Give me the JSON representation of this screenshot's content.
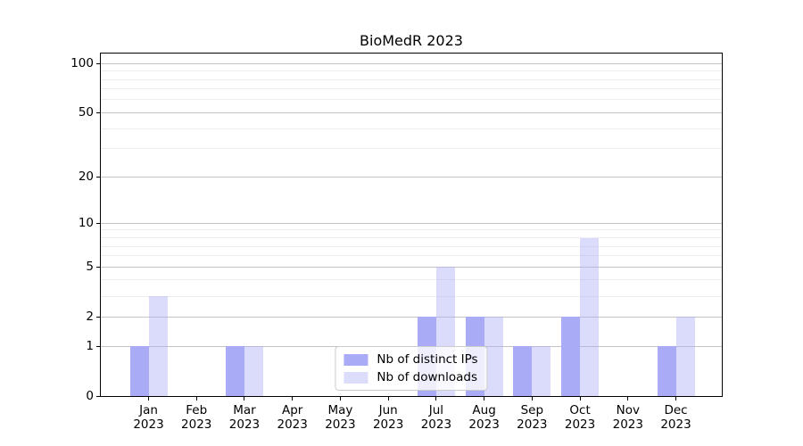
{
  "figure": {
    "background": "#ffffff"
  },
  "chart_data": {
    "type": "bar",
    "title": "BioMedR 2023",
    "x_categories": [
      {
        "month": "Jan",
        "year": "2023"
      },
      {
        "month": "Feb",
        "year": "2023"
      },
      {
        "month": "Mar",
        "year": "2023"
      },
      {
        "month": "Apr",
        "year": "2023"
      },
      {
        "month": "May",
        "year": "2023"
      },
      {
        "month": "Jun",
        "year": "2023"
      },
      {
        "month": "Jul",
        "year": "2023"
      },
      {
        "month": "Aug",
        "year": "2023"
      },
      {
        "month": "Sep",
        "year": "2023"
      },
      {
        "month": "Oct",
        "year": "2023"
      },
      {
        "month": "Nov",
        "year": "2023"
      },
      {
        "month": "Dec",
        "year": "2023"
      }
    ],
    "series": [
      {
        "name": "Nb of distinct IPs",
        "color": "#a9abf6",
        "alpha": 1,
        "legend_color": "#a9abf6",
        "values": [
          1,
          0,
          1,
          0,
          0,
          0,
          2,
          2,
          1,
          2,
          0,
          1
        ]
      },
      {
        "name": "Nb of downloads",
        "color": "#a9abf6",
        "alpha": 0.42,
        "legend_color": "#dcddfb",
        "values": [
          3,
          0,
          1,
          0,
          0,
          0,
          5,
          2,
          1,
          8,
          0,
          2
        ]
      }
    ],
    "y_scale": "log1p",
    "y_ticks": [
      0,
      1,
      2,
      5,
      10,
      20,
      50,
      100
    ],
    "y_minor_gridlines": [
      3,
      4,
      6,
      7,
      8,
      9,
      30,
      40,
      60,
      70,
      80,
      90
    ],
    "ylim": [
      0,
      115
    ],
    "grid": true,
    "legend_position": "lower center",
    "colors": {
      "grid_major": "#c4c4c4",
      "grid_minor": "#ededed",
      "axis": "#000000",
      "text": "#000000"
    }
  }
}
